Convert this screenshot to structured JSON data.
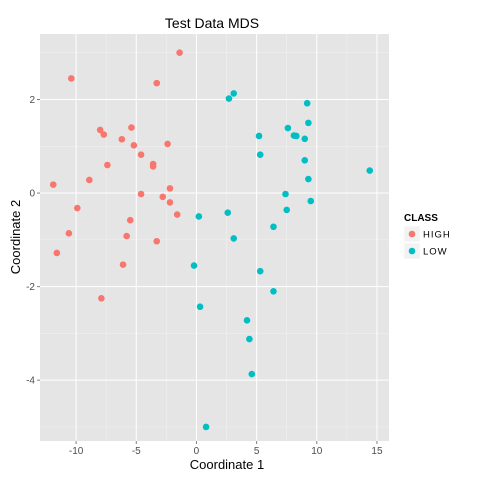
{
  "chart_data": {
    "type": "scatter",
    "title": "Test Data MDS",
    "xlabel": "Coordinate 1",
    "ylabel": "Coordinate 2",
    "xlim": [
      -13,
      16
    ],
    "ylim": [
      -5.3,
      3.4
    ],
    "x_ticks": [
      -10,
      -5,
      0,
      5,
      10,
      15
    ],
    "y_ticks": [
      -4,
      -2,
      0,
      2
    ],
    "x_tick_labels": [
      "-10",
      "-5",
      "0",
      "5",
      "10",
      "15"
    ],
    "y_tick_labels": [
      "-4",
      "-2",
      "0",
      "2"
    ],
    "grid": true,
    "legend_position": "right",
    "legend": {
      "title": "CLASS",
      "entries": [
        {
          "label": "HIGH",
          "color": "#f8766d"
        },
        {
          "label": "LOW",
          "color": "#00bfc4"
        }
      ]
    },
    "series": [
      {
        "name": "HIGH",
        "color": "#f8766d",
        "points": [
          [
            -1.4,
            3.0
          ],
          [
            -10.4,
            2.45
          ],
          [
            -3.3,
            2.35
          ],
          [
            -8.0,
            1.35
          ],
          [
            -7.7,
            1.25
          ],
          [
            -5.4,
            1.4
          ],
          [
            -6.2,
            1.15
          ],
          [
            -5.2,
            1.02
          ],
          [
            -2.4,
            1.05
          ],
          [
            -4.6,
            0.82
          ],
          [
            -7.4,
            0.6
          ],
          [
            -3.6,
            0.62
          ],
          [
            -3.6,
            0.57
          ],
          [
            -11.9,
            0.18
          ],
          [
            -8.9,
            0.28
          ],
          [
            -2.2,
            0.1
          ],
          [
            -4.6,
            -0.02
          ],
          [
            -2.8,
            -0.08
          ],
          [
            -2.2,
            -0.2
          ],
          [
            -9.9,
            -0.32
          ],
          [
            -1.6,
            -0.46
          ],
          [
            -5.5,
            -0.58
          ],
          [
            -10.6,
            -0.86
          ],
          [
            -5.8,
            -0.92
          ],
          [
            -3.3,
            -1.03
          ],
          [
            -11.6,
            -1.28
          ],
          [
            -6.1,
            -1.53
          ],
          [
            -7.9,
            -2.25
          ]
        ]
      },
      {
        "name": "LOW",
        "color": "#00bfc4",
        "points": [
          [
            3.1,
            2.13
          ],
          [
            2.7,
            2.02
          ],
          [
            9.2,
            1.92
          ],
          [
            9.3,
            1.5
          ],
          [
            7.6,
            1.39
          ],
          [
            5.2,
            1.22
          ],
          [
            8.1,
            1.23
          ],
          [
            8.3,
            1.22
          ],
          [
            9.0,
            1.16
          ],
          [
            5.3,
            0.82
          ],
          [
            9.0,
            0.7
          ],
          [
            14.4,
            0.48
          ],
          [
            9.3,
            0.3
          ],
          [
            7.4,
            -0.02
          ],
          [
            9.5,
            -0.17
          ],
          [
            7.5,
            -0.36
          ],
          [
            2.6,
            -0.42
          ],
          [
            0.2,
            -0.5
          ],
          [
            6.4,
            -0.72
          ],
          [
            3.1,
            -0.97
          ],
          [
            -0.2,
            -1.55
          ],
          [
            5.3,
            -1.67
          ],
          [
            6.4,
            -2.1
          ],
          [
            0.3,
            -2.43
          ],
          [
            4.2,
            -2.72
          ],
          [
            4.4,
            -3.12
          ],
          [
            4.6,
            -3.87
          ],
          [
            0.8,
            -5.0
          ]
        ]
      }
    ]
  }
}
